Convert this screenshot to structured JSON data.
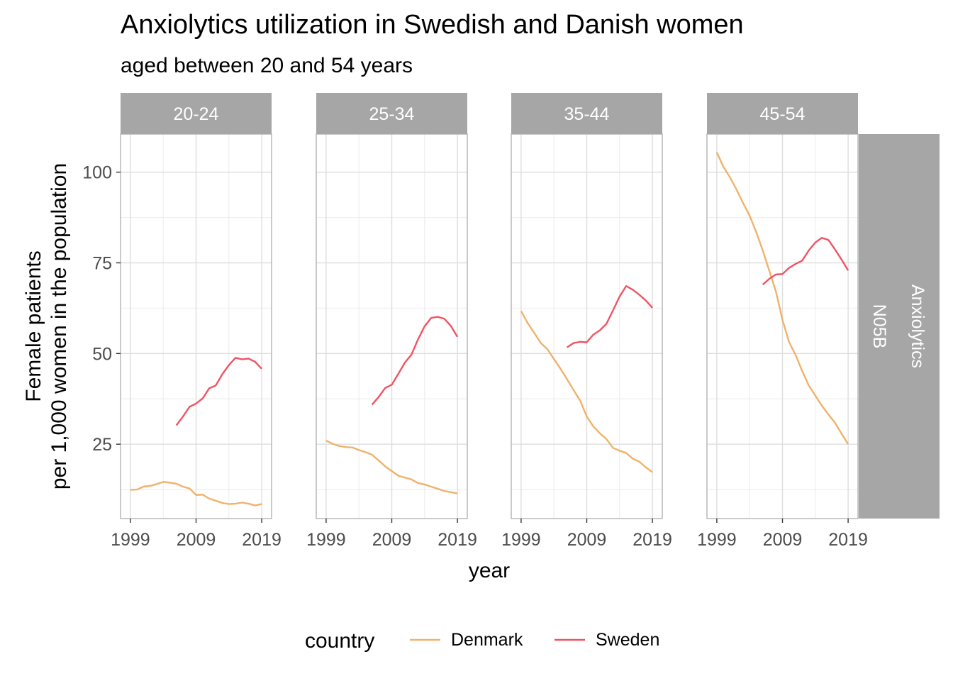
{
  "chart_data": {
    "type": "line",
    "title": "Anxiolytics utilization in Swedish and Danish women",
    "subtitle": "aged between 20 and 54 years",
    "xlabel": "year",
    "ylabel_lines": [
      "Female patients",
      "per 1,000 women in the population"
    ],
    "x_ticks": [
      "1999",
      "2009",
      "2019"
    ],
    "y_ticks": [
      25,
      50,
      75,
      100
    ],
    "xlim": [
      1997.5,
      2020.5
    ],
    "ylim": [
      4.5,
      110.5
    ],
    "grid": true,
    "legend": {
      "title": "country",
      "position": "bottom",
      "entries": [
        {
          "name": "Denmark",
          "color": "#F0B26B"
        },
        {
          "name": "Sweden",
          "color": "#EF5464"
        }
      ]
    },
    "row_strip": {
      "lines": [
        "Anxiolytics",
        "N05B"
      ]
    },
    "x": [
      1999,
      2000,
      2001,
      2002,
      2003,
      2004,
      2005,
      2006,
      2007,
      2008,
      2009,
      2010,
      2011,
      2012,
      2013,
      2014,
      2015,
      2016,
      2017,
      2018,
      2019
    ],
    "panels": [
      {
        "facet": "20-24",
        "series": [
          {
            "name": "Denmark",
            "color": "#F0B26B",
            "x_start": 1999,
            "values": [
              12.4,
              12.5,
              13.3,
              13.5,
              14.0,
              14.6,
              14.4,
              14.1,
              13.3,
              12.8,
              11.0,
              11.1,
              10.0,
              9.4,
              8.8,
              8.5,
              8.6,
              8.9,
              8.6,
              8.1,
              8.5
            ]
          },
          {
            "name": "Sweden",
            "color": "#EF5464",
            "x_start": 2006,
            "values": [
              30.2,
              32.6,
              35.3,
              36.2,
              37.6,
              40.4,
              41.2,
              44.3,
              46.8,
              48.8,
              48.4,
              48.6,
              47.7,
              45.8
            ]
          }
        ]
      },
      {
        "facet": "25-34",
        "series": [
          {
            "name": "Denmark",
            "color": "#F0B26B",
            "x_start": 1999,
            "values": [
              26.0,
              25.1,
              24.5,
              24.2,
              24.1,
              23.4,
              22.8,
              22.1,
              20.5,
              18.9,
              17.6,
              16.3,
              15.8,
              15.3,
              14.3,
              13.9,
              13.3,
              12.7,
              12.1,
              11.8,
              11.4
            ]
          },
          {
            "name": "Sweden",
            "color": "#EF5464",
            "x_start": 2006,
            "values": [
              35.9,
              38.0,
              40.5,
              41.4,
              44.4,
              47.5,
              49.7,
              53.9,
              57.5,
              59.8,
              60.1,
              59.6,
              57.6,
              54.6
            ]
          }
        ]
      },
      {
        "facet": "35-44",
        "series": [
          {
            "name": "Denmark",
            "color": "#F0B26B",
            "x_start": 1999,
            "values": [
              61.7,
              58.4,
              55.7,
              52.9,
              51.2,
              48.5,
              45.8,
              42.9,
              39.9,
              37.0,
              32.6,
              29.9,
              28.0,
              26.4,
              24.0,
              23.2,
              22.6,
              21.0,
              20.2,
              18.6,
              17.3
            ]
          },
          {
            "name": "Sweden",
            "color": "#EF5464",
            "x_start": 2006,
            "values": [
              51.7,
              52.9,
              53.2,
              53.1,
              55.2,
              56.4,
              58.2,
              61.9,
              65.7,
              68.6,
              67.6,
              66.2,
              64.6,
              62.6
            ]
          }
        ]
      },
      {
        "facet": "45-54",
        "series": [
          {
            "name": "Denmark",
            "color": "#F0B26B",
            "x_start": 1999,
            "values": [
              105.5,
              101.5,
              98.6,
              95.2,
              91.5,
              88.0,
              83.5,
              78.4,
              72.8,
              67.1,
              59.3,
              53.2,
              49.6,
              45.2,
              41.2,
              38.4,
              35.6,
              33.2,
              30.9,
              27.9,
              25.0
            ]
          },
          {
            "name": "Sweden",
            "color": "#EF5464",
            "x_start": 2006,
            "values": [
              69.0,
              70.6,
              71.8,
              71.9,
              73.6,
              74.7,
              75.6,
              78.4,
              80.6,
              81.9,
              81.3,
              78.7,
              75.9,
              72.9
            ]
          }
        ]
      }
    ]
  }
}
